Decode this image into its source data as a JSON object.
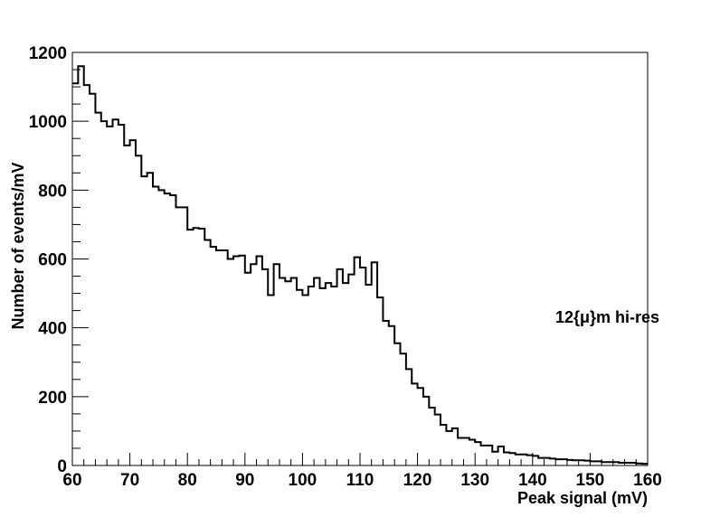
{
  "chart_data": {
    "type": "histogram",
    "xlabel": "Peak signal (mV)",
    "ylabel": "Number of events/mV",
    "xlim": [
      60,
      160
    ],
    "ylim": [
      0,
      1200
    ],
    "x_ticks": [
      "60",
      "70",
      "80",
      "90",
      "100",
      "110",
      "120",
      "130",
      "140",
      "150",
      "160"
    ],
    "y_ticks": [
      "0",
      "200",
      "400",
      "600",
      "800",
      "1000",
      "1200"
    ],
    "annotation": "12{μ}m hi-res",
    "bin_width": 1,
    "bin_start": 60,
    "values": [
      1110,
      1160,
      1105,
      1080,
      1025,
      1000,
      985,
      1005,
      990,
      930,
      945,
      900,
      840,
      850,
      810,
      800,
      790,
      785,
      750,
      750,
      685,
      690,
      688,
      655,
      635,
      625,
      625,
      600,
      608,
      610,
      560,
      585,
      608,
      570,
      495,
      585,
      545,
      535,
      545,
      510,
      495,
      520,
      545,
      515,
      530,
      520,
      570,
      530,
      555,
      605,
      575,
      525,
      590,
      488,
      420,
      405,
      355,
      325,
      280,
      238,
      225,
      200,
      168,
      148,
      118,
      100,
      108,
      80,
      80,
      75,
      68,
      58,
      58,
      40,
      55,
      38,
      36,
      32,
      32,
      30,
      28,
      22,
      22,
      20,
      18,
      18,
      16,
      15,
      15,
      14,
      12,
      12,
      10,
      10,
      10,
      8,
      8,
      8,
      6,
      5
    ],
    "grid": false,
    "line_color": "#000000"
  }
}
